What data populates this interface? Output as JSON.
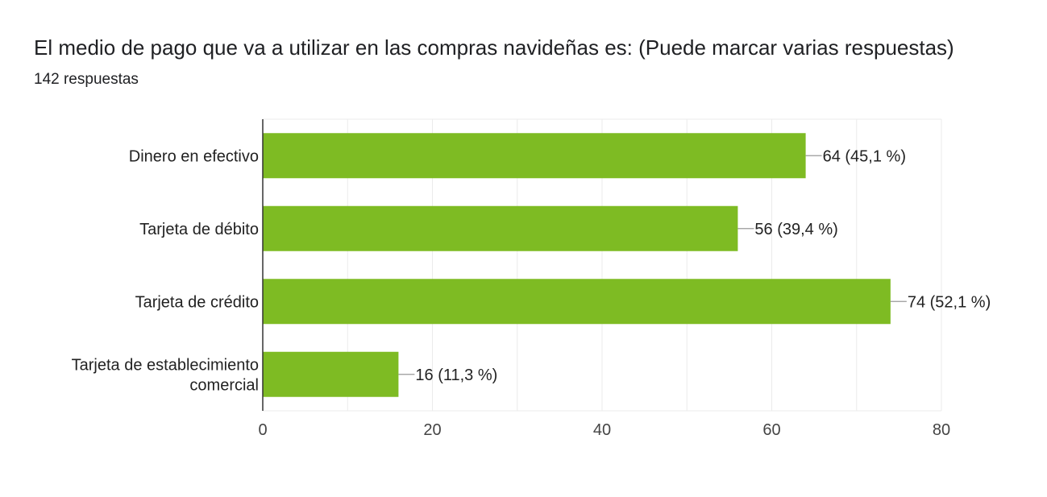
{
  "header": {
    "title": "El medio de pago que va a utilizar en las compras navideñas es:  (Puede marcar varias respuestas)",
    "responses": "142 respuestas"
  },
  "colors": {
    "bar": "#7ebb23",
    "grid": "#ebebeb",
    "axis": "#333333",
    "connector": "#999999"
  },
  "chart_data": {
    "type": "bar",
    "orientation": "horizontal",
    "categories": [
      [
        "Dinero en efectivo"
      ],
      [
        "Tarjeta de débito"
      ],
      [
        "Tarjeta de crédito"
      ],
      [
        "Tarjeta de establecimiento",
        "comercial"
      ]
    ],
    "values": [
      64,
      56,
      74,
      16
    ],
    "data_labels": [
      "64 (45,1 %)",
      "56 (39,4 %)",
      "74 (52,1 %)",
      "16 (11,3 %)"
    ],
    "xlim": [
      0,
      80
    ],
    "xticks": [
      0,
      20,
      40,
      60,
      80
    ],
    "grid": true
  }
}
